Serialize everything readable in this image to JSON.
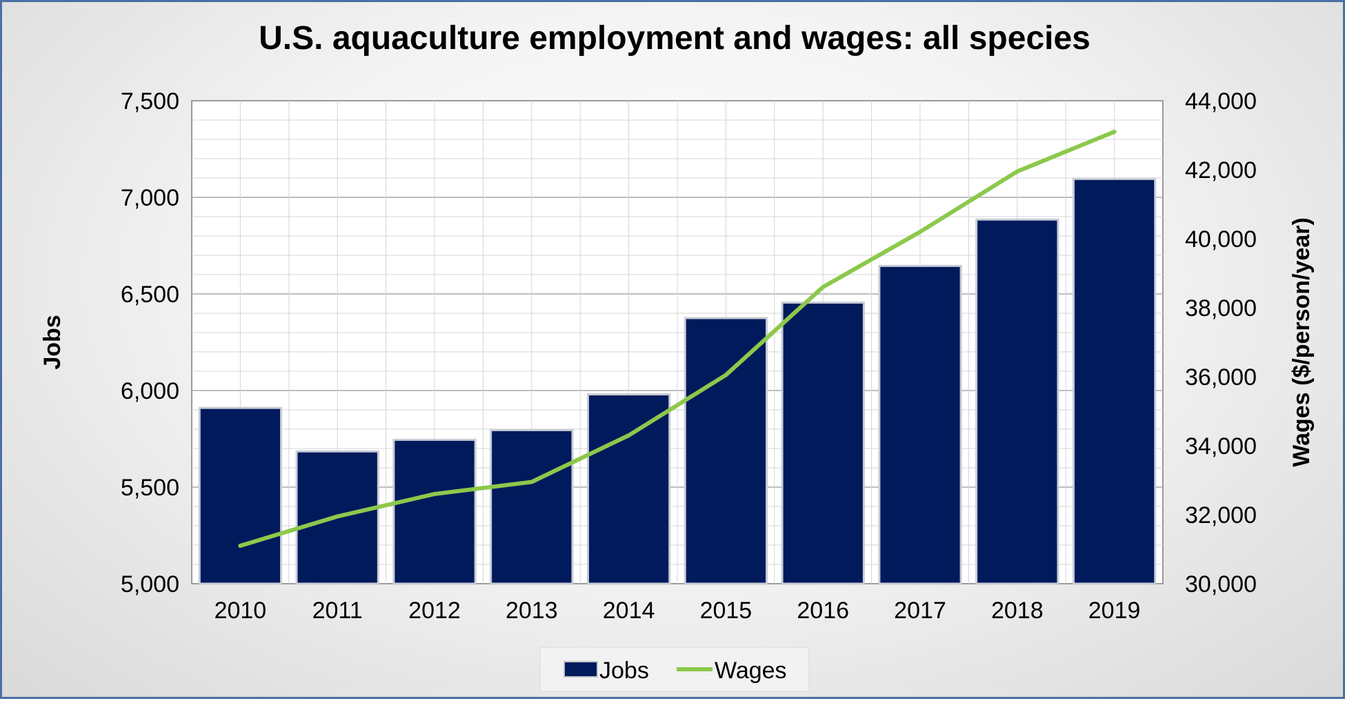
{
  "chart_data": {
    "type": "bar",
    "title": "U.S. aquaculture employment and wages: all species",
    "categories": [
      "2010",
      "2011",
      "2012",
      "2013",
      "2014",
      "2015",
      "2016",
      "2017",
      "2018",
      "2019"
    ],
    "series": [
      {
        "name": "Jobs",
        "type": "bar",
        "axis": "left",
        "color": "#001a5c",
        "values": [
          5910,
          5685,
          5745,
          5795,
          5980,
          6375,
          6455,
          6645,
          6885,
          7095
        ]
      },
      {
        "name": "Wages",
        "type": "line",
        "axis": "right",
        "color": "#8cc84b",
        "values": [
          31100,
          31950,
          32600,
          32950,
          34300,
          36050,
          38600,
          40200,
          41950,
          43100
        ]
      }
    ],
    "ylabel": "Jobs",
    "ylim": [
      5000,
      7500
    ],
    "yticks": [
      "5,000",
      "5,500",
      "6,000",
      "6,500",
      "7,000",
      "7,500"
    ],
    "ylabel_right": "Wages ($/person/year)",
    "ylim_right": [
      30000,
      44000
    ],
    "yticks_right": [
      "30,000",
      "32,000",
      "34,000",
      "36,000",
      "38,000",
      "40,000",
      "42,000",
      "44,000"
    ],
    "grid": true,
    "legend": [
      "Jobs",
      "Wages"
    ],
    "legend_position": "bottom"
  }
}
